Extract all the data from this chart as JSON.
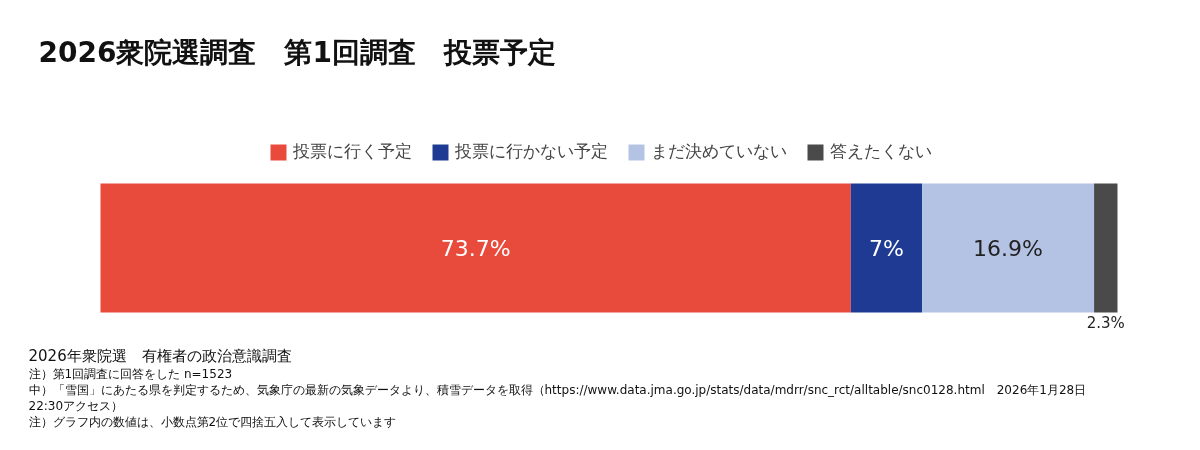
{
  "chart_data": {
    "type": "bar",
    "orientation": "horizontal",
    "stacked": true,
    "title": "2026衆院選調査　第1回調査　投票予定",
    "categories": [
      null
    ],
    "series": [
      {
        "name": "投票に行く予定",
        "color": "#e84b3c",
        "values": [
          73.7
        ],
        "value_labels": [
          "73.7%"
        ]
      },
      {
        "name": "投票に行かない予定",
        "color": "#1f3a93",
        "values": [
          7
        ],
        "value_labels": [
          "7%"
        ]
      },
      {
        "name": "まだ決めていない",
        "color": "#b4c3e4",
        "values": [
          16.9
        ],
        "value_labels": [
          "16.9%"
        ]
      },
      {
        "name": "答えたくない",
        "color": "#4a4a4a",
        "values": [
          2.3
        ],
        "value_labels": [
          "2.3%"
        ]
      }
    ],
    "legend": "top",
    "tick_labels": false,
    "annotations": [
      "2026年衆院選　有権者の政治意識調査",
      "注）第1回調査に回答をした n=1523",
      "中）「雪国」にあたる県を判定するため、気象庁の最新の気象データより、積雪データを取得（https://www.data.jma.go.jp/stats/data/mdrr/snc_rct/alltable/snc0128.html　2026年1月28日 22:30アクセス）",
      "注）グラフ内の数値は、小数点第2位で四捨五入して表示しています"
    ]
  }
}
